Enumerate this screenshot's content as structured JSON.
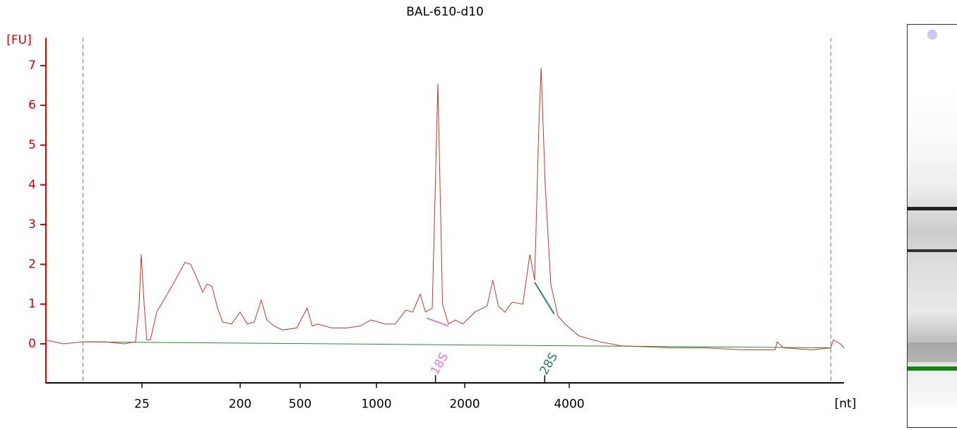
{
  "chart_data": {
    "type": "line",
    "title": "BAL-610-d10",
    "ylabel": "[FU]",
    "xlabel": "[nt]",
    "xlim": [
      3,
      25000
    ],
    "xticks": [
      25,
      200,
      500,
      1000,
      2000,
      4000
    ],
    "ylim": [
      -1,
      7.7
    ],
    "yticks": [
      0,
      1,
      2,
      3,
      4,
      5,
      6,
      7
    ],
    "axis_color": "#d40000",
    "series": [
      {
        "color": "#c0392b",
        "x": [
          3,
          4.4,
          6.8,
          11.3,
          16.7,
          21.7,
          23.5,
          24.6,
          26.2,
          27.7,
          29.9,
          34.2,
          39.7,
          48.3,
          62.2,
          70.2,
          81.5,
          90.5,
          99,
          110,
          124,
          138,
          167,
          200,
          223,
          248,
          276,
          301,
          336,
          382,
          474,
          533,
          558,
          587,
          667,
          759,
          863,
          950,
          1070,
          1160,
          1260,
          1330,
          1410,
          1470,
          1550,
          1620,
          1680,
          1760,
          1860,
          1970,
          2140,
          2320,
          2410,
          2500,
          2610,
          2740,
          2940,
          3080,
          3180,
          3270,
          3320,
          3410,
          3540,
          3710,
          3890,
          4270,
          4920,
          5670,
          7880,
          9980,
          12600,
          15800,
          16000,
          16700,
          20200,
          22900,
          23300,
          24400,
          25000
        ],
        "values": [
          0.1,
          0.0,
          0.05,
          0.05,
          0.0,
          0.05,
          1.0,
          2.25,
          1.0,
          0.1,
          0.1,
          0.8,
          1.1,
          1.5,
          2.05,
          2.0,
          1.6,
          1.3,
          1.5,
          1.45,
          0.9,
          0.55,
          0.5,
          0.8,
          0.5,
          0.55,
          1.1,
          0.6,
          0.45,
          0.35,
          0.4,
          0.9,
          0.45,
          0.5,
          0.4,
          0.4,
          0.45,
          0.6,
          0.5,
          0.5,
          0.85,
          0.8,
          1.25,
          0.8,
          0.9,
          6.55,
          1.0,
          0.5,
          0.6,
          0.5,
          0.8,
          0.95,
          1.6,
          0.95,
          0.8,
          1.05,
          1.0,
          2.25,
          1.6,
          5.5,
          6.95,
          4.0,
          1.5,
          0.7,
          0.5,
          0.2,
          0.05,
          -0.05,
          -0.1,
          -0.1,
          -0.15,
          -0.15,
          0.05,
          -0.1,
          -0.15,
          -0.1,
          0.1,
          0.0,
          -0.1
        ]
      }
    ],
    "markers": {
      "color": "#4a9a4a",
      "x": [
        6.8,
        22900
      ]
    },
    "baseline": {
      "color": "#2e8b2e",
      "x": [
        6.8,
        22900
      ],
      "values": [
        0.05,
        -0.1
      ]
    },
    "annotations": [
      {
        "text": "18S",
        "color": "#e879d8",
        "x": 1590,
        "line_x": [
          1480,
          1760
        ],
        "line_values": [
          0.65,
          0.45
        ]
      },
      {
        "text": "28S",
        "color": "#2e7d7a",
        "x": 3400,
        "line_x": [
          3180,
          3620
        ],
        "line_values": [
          1.55,
          0.75
        ]
      }
    ]
  }
}
